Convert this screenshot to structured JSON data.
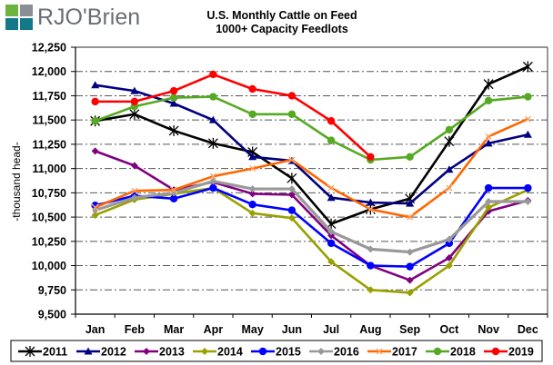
{
  "logo": {
    "text": "RJO'Brien",
    "icon": "rjo-brien-square-logo-icon"
  },
  "chart_data": {
    "type": "line",
    "title": "U.S. Monthly Cattle on Feed",
    "subtitle": "1000+ Capacity Feedlots",
    "xlabel": "",
    "ylabel": "-thousand head-",
    "ylim": [
      9500,
      12250
    ],
    "yticks": [
      9500,
      9750,
      10000,
      10250,
      10500,
      10750,
      11000,
      11250,
      11500,
      11750,
      12000,
      12250
    ],
    "ytick_labels": [
      "9,500",
      "9,750",
      "10,000",
      "10,250",
      "10,500",
      "10,750",
      "11,000",
      "11,250",
      "11,500",
      "11,750",
      "12,000",
      "12,250"
    ],
    "categories": [
      "Jan",
      "Feb",
      "Mar",
      "Apr",
      "May",
      "Jun",
      "Jul",
      "Aug",
      "Sep",
      "Oct",
      "Nov",
      "Dec"
    ],
    "grid": true,
    "legend_position": "bottom",
    "series": [
      {
        "name": "2011",
        "color": "#000000",
        "marker": "x",
        "values": [
          11490,
          11560,
          11390,
          11260,
          11170,
          10900,
          10430,
          10580,
          10690,
          11280,
          11870,
          12050
        ]
      },
      {
        "name": "2012",
        "color": "#000080",
        "marker": "triangle",
        "values": [
          11860,
          11800,
          11670,
          11500,
          11120,
          11080,
          10700,
          10650,
          10640,
          10990,
          11260,
          11350
        ]
      },
      {
        "name": "2013",
        "color": "#800080",
        "marker": "diamond",
        "values": [
          11180,
          11030,
          10780,
          10860,
          10740,
          10730,
          10310,
          10000,
          9850,
          10080,
          10560,
          10670
        ]
      },
      {
        "name": "2014",
        "color": "#99a000",
        "marker": "diamond",
        "values": [
          10520,
          10680,
          10740,
          10800,
          10540,
          10490,
          10040,
          9750,
          9720,
          10000,
          10600,
          10780
        ]
      },
      {
        "name": "2015",
        "color": "#0000ff",
        "marker": "circle",
        "values": [
          10620,
          10720,
          10690,
          10800,
          10630,
          10570,
          10230,
          10000,
          9990,
          10230,
          10800,
          10800
        ]
      },
      {
        "name": "2016",
        "color": "#999999",
        "marker": "diamond",
        "values": [
          10570,
          10700,
          10750,
          10870,
          10790,
          10790,
          10350,
          10170,
          10140,
          10270,
          10660,
          10660
        ]
      },
      {
        "name": "2017",
        "color": "#ff6600",
        "marker": "x-square",
        "values": [
          10600,
          10770,
          10780,
          10920,
          11000,
          11090,
          10800,
          10580,
          10500,
          10800,
          11330,
          11510
        ]
      },
      {
        "name": "2018",
        "color": "#55aa22",
        "marker": "circle",
        "values": [
          11490,
          11640,
          11730,
          11740,
          11560,
          11560,
          11290,
          11090,
          11120,
          11400,
          11700,
          11740
        ]
      },
      {
        "name": "2019",
        "color": "#ff0000",
        "marker": "circle",
        "values": [
          11690,
          11690,
          11800,
          11970,
          11820,
          11750,
          11490,
          11120,
          null,
          null,
          null,
          null
        ]
      }
    ]
  }
}
